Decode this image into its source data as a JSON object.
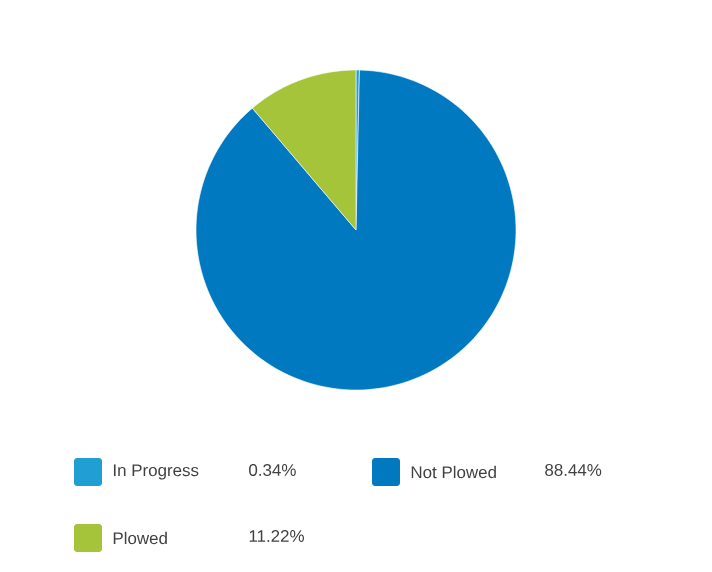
{
  "chart_data": {
    "type": "pie",
    "categories": [
      "In Progress",
      "Not Plowed",
      "Plowed"
    ],
    "values": [
      0.34,
      88.44,
      11.22
    ],
    "value_labels": [
      "0.34%",
      "88.44%",
      "11.22%"
    ],
    "colors": [
      "#1f9fd3",
      "#0079c1",
      "#a5c43a"
    ],
    "legend": "bottom"
  }
}
